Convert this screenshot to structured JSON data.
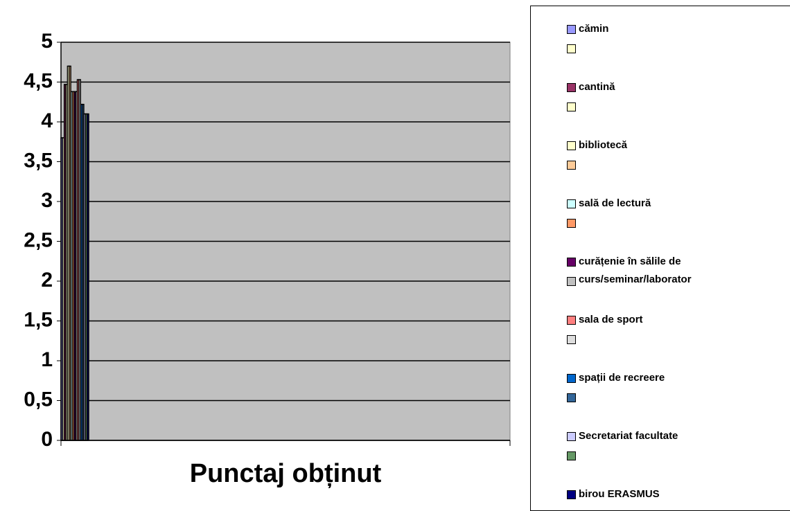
{
  "chart_data": {
    "type": "bar",
    "categories": [
      "Punctaj obținut"
    ],
    "series": [
      {
        "name": "cămin",
        "color": "#9999ff",
        "values": [
          3.8
        ]
      },
      {
        "name": null,
        "color": "#ffffcc",
        "values": [
          3.8
        ]
      },
      {
        "name": "cantină",
        "color": "#993366",
        "values": [
          4.47
        ]
      },
      {
        "name": null,
        "color": "#ffffcc",
        "values": [
          4.47
        ]
      },
      {
        "name": "bibliotecă",
        "color": "#ffffcc",
        "values": [
          4.7
        ]
      },
      {
        "name": null,
        "color": "#ffcc99",
        "values": [
          4.7
        ]
      },
      {
        "name": "sală de lectură",
        "color": "#ccffff",
        "values": [
          4.38
        ]
      },
      {
        "name": null,
        "color": "#ff9966",
        "values": [
          4.38
        ]
      },
      {
        "name": "curățenie în sălile de curs/seminar/laborator",
        "color": "#660066",
        "values": [
          4.38
        ]
      },
      {
        "name": null,
        "color": "#c0c0c0",
        "values": [
          4.38
        ]
      },
      {
        "name": "sala de sport",
        "color": "#ff8080",
        "values": [
          4.53
        ]
      },
      {
        "name": null,
        "color": "#dddddd",
        "values": [
          4.53
        ]
      },
      {
        "name": "spații de recreere",
        "color": "#0066cc",
        "values": [
          4.22
        ]
      },
      {
        "name": null,
        "color": "#336699",
        "values": [
          4.22
        ]
      },
      {
        "name": "Secretariat facultate",
        "color": "#ccccff",
        "values": [
          4.1
        ]
      },
      {
        "name": null,
        "color": "#669966",
        "values": [
          4.1
        ]
      },
      {
        "name": "birou ERASMUS",
        "color": "#000080",
        "values": [
          4.1
        ]
      }
    ],
    "ylim": [
      0,
      5
    ],
    "yticks": [
      0,
      {
        "value": 0.5,
        "label": "0,5"
      },
      1,
      {
        "value": 1.5,
        "label": "1,5"
      },
      2,
      {
        "value": 2.5,
        "label": "2,5"
      },
      3,
      {
        "value": 3.5,
        "label": "3,5"
      },
      4,
      {
        "value": 4.5,
        "label": "4,5"
      },
      5
    ],
    "grid": true
  }
}
